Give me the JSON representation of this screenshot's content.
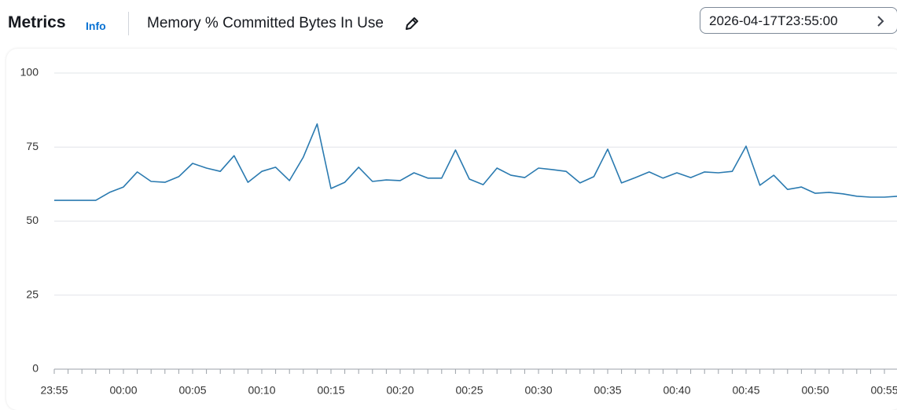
{
  "header": {
    "title": "Metrics",
    "info": "Info",
    "metric": "Memory % Committed Bytes In Use",
    "date": "2026-04-17T23:55:00"
  },
  "chart_data": {
    "type": "line",
    "categories": [
      "23:55",
      null,
      null,
      null,
      null,
      "00:00",
      null,
      null,
      null,
      null,
      "00:05",
      null,
      null,
      null,
      null,
      "00:10",
      null,
      null,
      null,
      null,
      "00:15",
      null,
      null,
      null,
      null,
      "00:20",
      null,
      null,
      null,
      null,
      "00:25",
      null,
      null,
      null,
      null,
      "00:30",
      null,
      null,
      null,
      null,
      "00:35",
      null,
      null,
      null,
      null,
      "00:40",
      null,
      null,
      null,
      null,
      "00:45",
      null,
      null,
      null,
      null,
      "00:50",
      null,
      null,
      null,
      null,
      "00:55",
      null
    ],
    "series": [
      {
        "color": "#2a7ab0",
        "values": [
          57.0,
          57.0,
          57.0,
          57.0,
          59.7,
          61.5,
          66.6,
          63.4,
          63.1,
          65.0,
          69.5,
          67.9,
          66.8,
          72.1,
          63.1,
          66.8,
          68.2,
          63.7,
          71.6,
          82.8,
          61.0,
          63.1,
          68.2,
          63.4,
          63.9,
          63.7,
          66.3,
          64.5,
          64.5,
          74.0,
          64.2,
          62.3,
          67.9,
          65.5,
          64.7,
          67.9,
          67.4,
          66.8,
          62.9,
          65.0,
          74.3,
          62.9,
          64.7,
          66.6,
          64.5,
          66.3,
          64.7,
          66.6,
          66.3,
          66.8,
          75.3,
          62.1,
          65.5,
          60.7,
          61.5,
          59.4,
          59.7,
          59.2,
          58.4,
          58.1,
          58.1,
          58.4
        ]
      }
    ],
    "ylim": [
      0,
      100
    ],
    "yticks": [
      0,
      25,
      50,
      75,
      100
    ],
    "grid": true
  }
}
